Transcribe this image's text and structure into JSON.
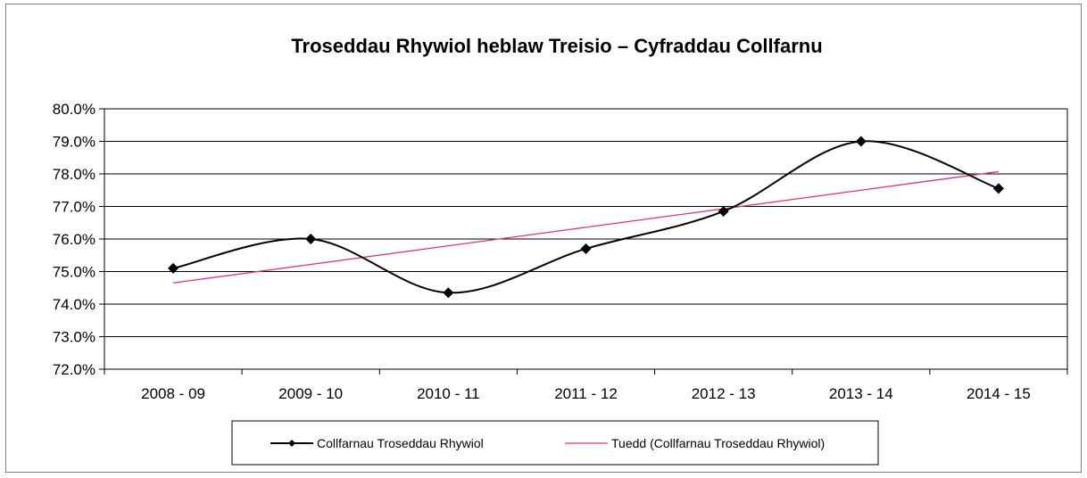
{
  "chart_data": {
    "type": "line",
    "title": "Troseddau Rhywiol heblaw Treisio – Cyfraddau Collfarnu",
    "categories": [
      "2008 - 09",
      "2009 - 10",
      "2010 - 11",
      "2011 - 12",
      "2012 - 13",
      "2013 - 14",
      "2014 - 15"
    ],
    "series": [
      {
        "name": "Collfarnau Troseddau Rhywiol",
        "values": [
          75.1,
          76.0,
          74.35,
          75.7,
          76.85,
          79.0,
          77.55
        ],
        "color": "#000000",
        "marker": "diamond",
        "smooth": true
      },
      {
        "name": "Tuedd (Collfarnau Troseddau Rhywiol)",
        "values": [
          74.65,
          75.22,
          75.79,
          76.36,
          76.93,
          77.5,
          78.07
        ],
        "color": "#e8307a",
        "marker": "none",
        "smooth": false
      }
    ],
    "ylim": [
      72.0,
      80.0
    ],
    "yticks": [
      "72.0%",
      "73.0%",
      "74.0%",
      "75.0%",
      "76.0%",
      "77.0%",
      "78.0%",
      "79.0%",
      "80.0%"
    ],
    "ytick_values": [
      72,
      73,
      74,
      75,
      76,
      77,
      78,
      79,
      80
    ],
    "grid": "horizontal",
    "legend_position": "bottom"
  }
}
